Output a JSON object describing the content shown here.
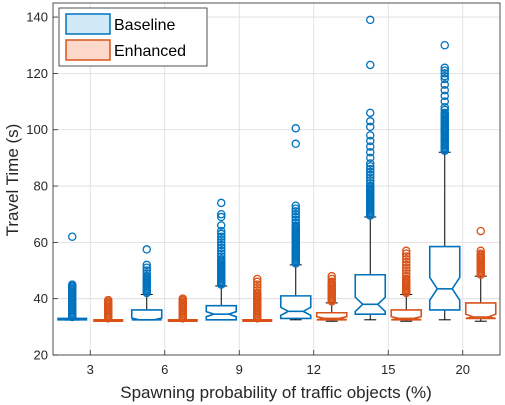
{
  "chart_data": {
    "type": "box",
    "xlabel": "Spawning probability of traffic objects (%)",
    "ylabel": "Travel Time (s)",
    "ylim": [
      20,
      145
    ],
    "yticks": [
      20,
      40,
      60,
      80,
      100,
      120,
      140
    ],
    "categories": [
      "3",
      "6",
      "9",
      "12",
      "15",
      "20"
    ],
    "grid": true,
    "notched": true,
    "legend_position": "top-left",
    "series": [
      {
        "name": "Baseline",
        "color": "#0072BD",
        "boxes": [
          {
            "category": "3",
            "lower_whisker": 32.5,
            "q1": 32.5,
            "median": 32.5,
            "q3": 33,
            "upper_whisker": 33,
            "outliers": [
              33.5,
              34,
              34.5,
              35,
              35.5,
              36,
              36.5,
              37,
              37.5,
              38,
              38.5,
              39,
              39.5,
              40,
              40.5,
              41,
              41.5,
              42,
              42.5,
              43,
              43.5,
              44,
              44.5,
              45,
              62
            ]
          },
          {
            "category": "6",
            "lower_whisker": 32.5,
            "q1": 32.5,
            "median": 32.5,
            "q3": 36,
            "upper_whisker": 41.5,
            "outliers": [
              42,
              42.5,
              43,
              43.5,
              44,
              44.5,
              45,
              45.5,
              46,
              46.5,
              47,
              47.5,
              48,
              49,
              50,
              51,
              52,
              57.5
            ]
          },
          {
            "category": "9",
            "lower_whisker": 32.5,
            "q1": 32.5,
            "median": 34.5,
            "q3": 37.5,
            "upper_whisker": 44.5,
            "outliers": [
              45,
              45.5,
              46,
              46.5,
              47,
              47.5,
              48,
              48.5,
              49,
              49.5,
              50,
              50.5,
              51,
              51.5,
              52,
              52.5,
              53,
              53.5,
              54,
              55,
              56,
              57,
              58,
              59,
              60,
              61,
              62,
              63,
              64,
              66,
              69,
              70,
              74
            ]
          },
          {
            "category": "12",
            "lower_whisker": 32.5,
            "q1": 33,
            "median": 35.5,
            "q3": 41,
            "upper_whisker": 52,
            "outliers": [
              52.5,
              53,
              53.5,
              54,
              54.5,
              55,
              55.5,
              56,
              56.5,
              57,
              57.5,
              58,
              58.5,
              59,
              59.5,
              60,
              60.5,
              61,
              61.5,
              62,
              62.5,
              63,
              63.5,
              64,
              64.5,
              65,
              65.5,
              66,
              67,
              68,
              69,
              70,
              71,
              72,
              73,
              95,
              100.5
            ]
          },
          {
            "category": "15",
            "lower_whisker": 32.5,
            "q1": 34.5,
            "median": 38,
            "q3": 48.5,
            "upper_whisker": 69,
            "outliers": [
              69.5,
              70,
              70.5,
              71,
              71.5,
              72,
              72.5,
              73,
              73.5,
              74,
              74.5,
              75,
              75.5,
              76,
              76.5,
              77,
              77.5,
              78,
              78.5,
              79,
              79.5,
              80,
              81,
              82,
              83,
              84,
              85,
              86,
              87,
              88,
              90,
              92,
              94,
              96,
              98,
              101,
              103,
              106,
              123,
              139
            ]
          },
          {
            "category": "20",
            "lower_whisker": 32.5,
            "q1": 36,
            "median": 43.5,
            "q3": 58.5,
            "upper_whisker": 92,
            "outliers": [
              92.5,
              93,
              93.5,
              94,
              94.5,
              95,
              95.5,
              96,
              96.5,
              97,
              97.5,
              98,
              98.5,
              99,
              99.5,
              100,
              100.5,
              101,
              101.5,
              102,
              102.5,
              103,
              103.5,
              104,
              104.5,
              105,
              105.5,
              106,
              107,
              108,
              110,
              112,
              114,
              116,
              118,
              119,
              120,
              121,
              122,
              130
            ]
          }
        ]
      },
      {
        "name": "Enhanced",
        "color": "#D95319",
        "boxes": [
          {
            "category": "3",
            "lower_whisker": 32,
            "q1": 32,
            "median": 32,
            "q3": 32.5,
            "upper_whisker": 32.5,
            "outliers": [
              33,
              33.5,
              34,
              34.5,
              35,
              35.5,
              36,
              36.5,
              37,
              37.5,
              38,
              38.5,
              39,
              39.5
            ]
          },
          {
            "category": "6",
            "lower_whisker": 32,
            "q1": 32,
            "median": 32,
            "q3": 32.5,
            "upper_whisker": 32.5,
            "outliers": [
              33,
              33.5,
              34,
              34.5,
              35,
              35.5,
              36,
              36.5,
              37,
              37.5,
              38,
              38.5,
              39,
              39.5,
              40
            ]
          },
          {
            "category": "9",
            "lower_whisker": 32,
            "q1": 32,
            "median": 32,
            "q3": 32.5,
            "upper_whisker": 32.5,
            "outliers": [
              33,
              33.5,
              34,
              34.5,
              35,
              35.5,
              36,
              36.5,
              37,
              37.5,
              38,
              38.5,
              39,
              39.5,
              40,
              40.5,
              41,
              41.5,
              42,
              43,
              44,
              45,
              46,
              47
            ]
          },
          {
            "category": "12",
            "lower_whisker": 32,
            "q1": 32.5,
            "median": 33,
            "q3": 35,
            "upper_whisker": 38.5,
            "outliers": [
              39,
              39.5,
              40,
              40.5,
              41,
              41.5,
              42,
              42.5,
              43,
              43.5,
              44,
              44.5,
              45,
              45.5,
              46,
              47,
              48
            ]
          },
          {
            "category": "15",
            "lower_whisker": 32,
            "q1": 32.5,
            "median": 33,
            "q3": 36,
            "upper_whisker": 41.5,
            "outliers": [
              42,
              42.5,
              43,
              43.5,
              44,
              44.5,
              45,
              45.5,
              46,
              46.5,
              47,
              48,
              49,
              50,
              51,
              52,
              53,
              54,
              55,
              56,
              57
            ]
          },
          {
            "category": "20",
            "lower_whisker": 32,
            "q1": 33,
            "median": 33.5,
            "q3": 38.5,
            "upper_whisker": 48,
            "outliers": [
              48.5,
              49,
              49.5,
              50,
              50.5,
              51,
              51.5,
              52,
              52.5,
              53,
              53.5,
              54,
              54.5,
              55,
              55.5,
              56,
              57,
              64
            ]
          }
        ]
      }
    ]
  }
}
